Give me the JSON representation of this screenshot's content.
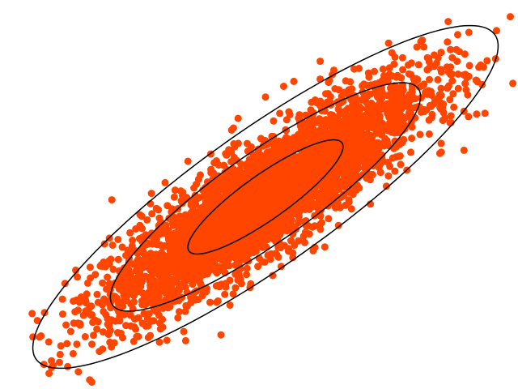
{
  "chart_data": {
    "type": "scatter",
    "title": "",
    "xlabel": "",
    "ylabel": "",
    "axes_visible": false,
    "grid": false,
    "legend": "none",
    "xlim": [
      -4.4,
      4.4
    ],
    "ylim": [
      -4.2,
      4.2
    ],
    "point_color": "#ff4500",
    "contour_color": "#000000",
    "point_count": 4000,
    "distribution": {
      "mean": [
        0,
        0
      ],
      "std_x": 1.7,
      "std_y": 1.6,
      "correlation": 0.88
    },
    "confidence_ellipses": [
      {
        "n_std": 1
      },
      {
        "n_std": 2
      },
      {
        "n_std": 3
      }
    ],
    "sample_points": [
      [
        -3.92,
        -2.72
      ],
      [
        -3.95,
        -2.88
      ],
      [
        -3.6,
        -1.9
      ],
      [
        -3.4,
        -2.6
      ],
      [
        -3.1,
        -3.3
      ],
      [
        -2.95,
        -3.0
      ],
      [
        -2.6,
        -2.8
      ],
      [
        -2.2,
        -2.6
      ],
      [
        -1.9,
        -2.9
      ],
      [
        -0.4,
        -1.8
      ],
      [
        -1.7,
        1.0
      ],
      [
        -2.2,
        0.4
      ],
      [
        -2.5,
        0.1
      ],
      [
        -2.75,
        -0.5
      ],
      [
        -1.2,
        1.2
      ],
      [
        -0.6,
        2.2
      ],
      [
        0.0,
        2.8
      ],
      [
        0.4,
        3.1
      ],
      [
        1.2,
        3.3
      ],
      [
        1.5,
        3.55
      ],
      [
        1.2,
        3.8
      ],
      [
        2.05,
        3.6
      ],
      [
        3.2,
        3.75
      ],
      [
        3.55,
        3.9
      ],
      [
        3.85,
        4.05
      ],
      [
        4.2,
        3.8
      ],
      [
        4.4,
        3.0
      ],
      [
        4.35,
        2.4
      ],
      [
        4.45,
        2.25
      ],
      [
        3.9,
        2.6
      ],
      [
        3.85,
        1.5
      ],
      [
        3.1,
        0.75
      ],
      [
        2.65,
        0.3
      ],
      [
        2.3,
        -0.2
      ],
      [
        1.6,
        -0.8
      ],
      [
        1.3,
        -1.4
      ],
      [
        0.6,
        -1.7
      ],
      [
        -0.55,
        -2.3
      ],
      [
        -1.3,
        -2.0
      ],
      [
        -2.4,
        -2.0
      ]
    ]
  }
}
